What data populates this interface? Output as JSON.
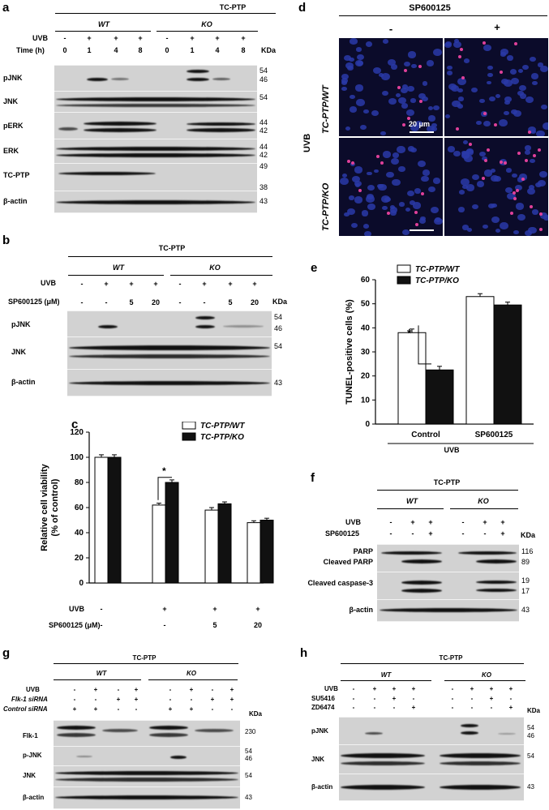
{
  "panel_a": {
    "label": "a",
    "title": "TC-PTP",
    "wt": "WT",
    "ko": "KO",
    "row_uvb": "UVB",
    "row_time": "Time (h)",
    "uvb_marks": [
      "-",
      "+",
      "+",
      "+",
      "-",
      "+",
      "+",
      "+"
    ],
    "time_values": [
      "0",
      "1",
      "4",
      "8",
      "0",
      "1",
      "4",
      "8"
    ],
    "kda": "KDa",
    "blots": [
      "pJNK",
      "JNK",
      "pERK",
      "ERK",
      "TC-PTP",
      "β-actin"
    ],
    "mw": [
      "54",
      "46",
      "54",
      "44",
      "42",
      "44",
      "42",
      "49",
      "38",
      "43"
    ]
  },
  "panel_b": {
    "label": "b",
    "title": "TC-PTP",
    "wt": "WT",
    "ko": "KO",
    "row_uvb": "UVB",
    "row_sp": "SP600125 (μM)",
    "uvb_marks": [
      "-",
      "+",
      "+",
      "+",
      "-",
      "+",
      "+",
      "+"
    ],
    "sp_values": [
      "-",
      "-",
      "5",
      "20",
      "-",
      "-",
      "5",
      "20"
    ],
    "kda": "KDa",
    "blots": [
      "pJNK",
      "JNK",
      "β-actin"
    ],
    "mw": [
      "54",
      "46",
      "54",
      "43"
    ]
  },
  "panel_c": {
    "label": "c",
    "row_uvb": "UVB",
    "row_sp": "SP600125 (μM)",
    "uvb_marks": [
      "-",
      "+",
      "+",
      "+"
    ],
    "sp_values": [
      "-",
      "-",
      "5",
      "20"
    ],
    "star": "*"
  },
  "panel_d": {
    "label": "d",
    "title": "SP600125",
    "minus": "-",
    "plus": "+",
    "uvb": "UVB",
    "row_wt": "TC-PTP/WT",
    "row_ko": "TC-PTP/KO",
    "scale": "20 μm"
  },
  "panel_e": {
    "label": "e",
    "uvb": "UVB",
    "star": "*"
  },
  "panel_f": {
    "label": "f",
    "title": "TC-PTP",
    "wt": "WT",
    "ko": "KO",
    "row_uvb": "UVB",
    "row_sp": "SP600125",
    "uvb_marks": [
      "-",
      "+",
      "+",
      "-",
      "+",
      "+"
    ],
    "sp_marks": [
      "-",
      "-",
      "+",
      "-",
      "-",
      "+"
    ],
    "kda": "KDa",
    "blots": [
      "PARP",
      "Cleaved PARP",
      "Cleaved caspase-3",
      "β-actin"
    ],
    "mw": [
      "116",
      "89",
      "19",
      "17",
      "43"
    ]
  },
  "panel_g": {
    "label": "g",
    "title": "TC-PTP",
    "wt": "WT",
    "ko": "KO",
    "row_uvb": "UVB",
    "row_flk": "Flk-1 siRNA",
    "row_ctrl": "Control siRNA",
    "uvb_marks": [
      "-",
      "+",
      "-",
      "+",
      "-",
      "+",
      "-",
      "+"
    ],
    "flk_marks": [
      "-",
      "-",
      "+",
      "+",
      "-",
      "-",
      "+",
      "+"
    ],
    "ctrl_marks": [
      "+",
      "+",
      "-",
      "-",
      "+",
      "+",
      "-",
      "-"
    ],
    "kda": "KDa",
    "blots": [
      "Flk-1",
      "p-JNK",
      "JNK",
      "β-actin"
    ],
    "mw": [
      "230",
      "54",
      "46",
      "54",
      "43"
    ]
  },
  "panel_h": {
    "label": "h",
    "title": "TC-PTP",
    "wt": "WT",
    "ko": "KO",
    "row_uvb": "UVB",
    "row_su": "SU5416",
    "row_zd": "ZD6474",
    "uvb_marks": [
      "-",
      "+",
      "+",
      "+",
      "-",
      "+",
      "+",
      "+"
    ],
    "su_marks": [
      "-",
      "-",
      "+",
      "-",
      "-",
      "-",
      "+",
      "-"
    ],
    "zd_marks": [
      "-",
      "-",
      "-",
      "+",
      "-",
      "-",
      "-",
      "+"
    ],
    "kda": "KDa",
    "blots": [
      "pJNK",
      "JNK",
      "β-actin"
    ],
    "mw": [
      "54",
      "46",
      "54",
      "43"
    ]
  },
  "chart_data": [
    {
      "type": "bar",
      "categories": [
        "-/-",
        "+/-",
        "+/5",
        "+/20"
      ],
      "series": [
        {
          "name": "TC-PTP/WT",
          "values": [
            100,
            62,
            58,
            48
          ],
          "errors": [
            2,
            1.5,
            2,
            1.5
          ],
          "color": "#ffffff"
        },
        {
          "name": "TC-PTP/KO",
          "values": [
            100,
            80,
            63,
            50
          ],
          "errors": [
            2,
            2,
            1.5,
            1.5
          ],
          "color": "#111111"
        }
      ],
      "ylabel": "Relative cell viability (% of control)",
      "ylim": [
        0,
        120
      ],
      "yticks": [
        0,
        20,
        40,
        60,
        80,
        100,
        120
      ],
      "legend": "top-right"
    },
    {
      "type": "bar",
      "categories": [
        "Control",
        "SP600125"
      ],
      "series": [
        {
          "name": "TC-PTP/WT",
          "values": [
            38,
            53
          ],
          "errors": [
            1.5,
            1.2
          ],
          "color": "#ffffff"
        },
        {
          "name": "TC-PTP/KO",
          "values": [
            22.5,
            49.5
          ],
          "errors": [
            1.5,
            1.2
          ],
          "color": "#111111"
        }
      ],
      "ylabel": "TUNEL-positive cells (%)",
      "ylim": [
        0,
        60
      ],
      "yticks": [
        0,
        10,
        20,
        30,
        40,
        50,
        60
      ],
      "legend": "top-left"
    }
  ]
}
